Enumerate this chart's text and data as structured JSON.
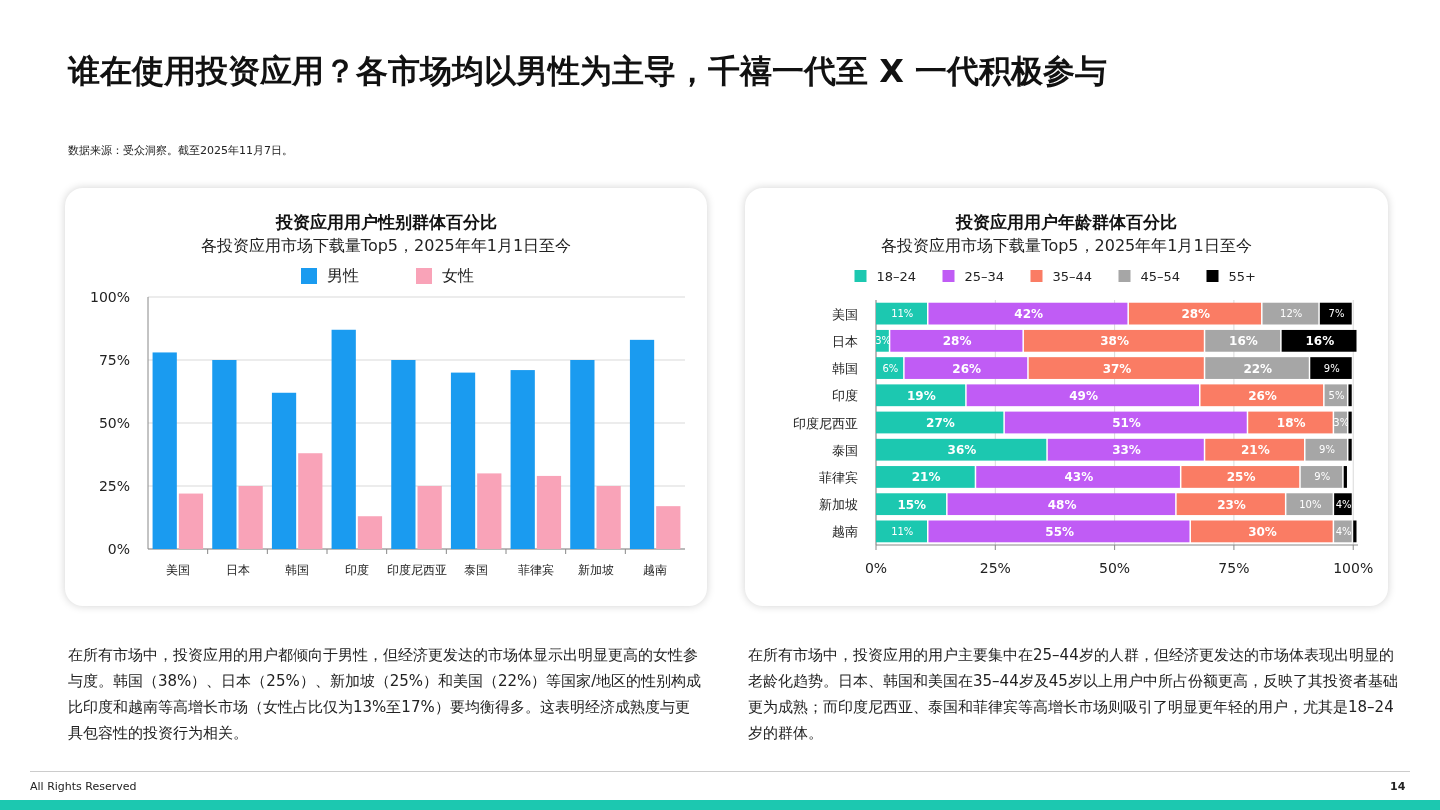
{
  "chart_data": [
    {
      "type": "bar",
      "title": "投资应用用户性别群体百分比",
      "subtitle": "各投资应用市场下载量Top5，2025年年1月1日至今",
      "categories": [
        "美国",
        "日本",
        "韩国",
        "印度",
        "印度尼西亚",
        "泰国",
        "菲律宾",
        "新加坡",
        "越南"
      ],
      "series": [
        {
          "name": "男性",
          "color": "#1a9bf0",
          "values": [
            78,
            75,
            62,
            87,
            75,
            70,
            71,
            75,
            83
          ]
        },
        {
          "name": "女性",
          "color": "#f9a3b8",
          "values": [
            22,
            25,
            38,
            13,
            25,
            30,
            29,
            25,
            17
          ]
        }
      ],
      "ylim": [
        0,
        100
      ],
      "yticks": [
        {
          "value": 0,
          "label": "0%"
        },
        {
          "value": 25,
          "label": "25%"
        },
        {
          "value": 50,
          "label": "50%"
        },
        {
          "value": 75,
          "label": "75%"
        },
        {
          "value": 100,
          "label": "100%"
        }
      ],
      "grid": "y",
      "legend": "top",
      "annotations": [
        "谁在使用投资应用？各市场均以男性为主导，千禧一代至 X 一代积极参与",
        "数据来源：受众洞察。截至2025年11月7日。",
        "在所有市场中，投资应用的用户都倾向于男性，但经济更发达的市场体显示出明显更高的女性参与度。韩国（38%）、日本（25%）、新加坡（25%）和美国（22%）等国家/地区的性别构成比印度和越南等高增长市场（女性占比仅为13%至17%）要均衡得多。这表明经济成熟度与更具包容性的投资行为相关。"
      ]
    },
    {
      "type": "bar",
      "orientation": "horizontal",
      "stacked": true,
      "title": "投资应用用户年龄群体百分比",
      "subtitle": "各投资应用市场下载量Top5，2025年年1月1日至今",
      "categories": [
        "美国",
        "日本",
        "韩国",
        "印度",
        "印度尼西亚",
        "泰国",
        "菲律宾",
        "新加坡",
        "越南"
      ],
      "series": [
        {
          "name": "18–24",
          "color": "#1cc8b0",
          "values": [
            11,
            3,
            6,
            19,
            27,
            36,
            21,
            15,
            11
          ],
          "value_labels": [
            "11%",
            "3%",
            "6%",
            "19%",
            "27%",
            "36%",
            "21%",
            "15%",
            "11%"
          ]
        },
        {
          "name": "25–34",
          "color": "#c05cf5",
          "values": [
            42,
            28,
            26,
            49,
            51,
            33,
            43,
            48,
            55
          ],
          "value_labels": [
            "42%",
            "28%",
            "26%",
            "49%",
            "51%",
            "33%",
            "43%",
            "48%",
            "55%"
          ]
        },
        {
          "name": "35–44",
          "color": "#fa7c64",
          "values": [
            28,
            38,
            37,
            26,
            18,
            21,
            25,
            23,
            30
          ],
          "value_labels": [
            "28%",
            "38%",
            "37%",
            "26%",
            "18%",
            "21%",
            "25%",
            "23%",
            "30%"
          ]
        },
        {
          "name": "45–54",
          "color": "#a6a6a6",
          "values": [
            12,
            16,
            22,
            5,
            3,
            9,
            9,
            10,
            4
          ],
          "value_labels": [
            "12%",
            "16%",
            "22%",
            "5%",
            "3%",
            "9%",
            "9%",
            "10%",
            "4%"
          ]
        },
        {
          "name": "55+",
          "color": "#000000",
          "values": [
            7,
            16,
            9,
            1,
            1,
            1,
            1,
            4,
            1
          ],
          "value_labels": [
            "7%",
            "16%",
            "9%",
            null,
            null,
            null,
            null,
            "4%",
            null
          ]
        }
      ],
      "xlim": [
        0,
        101
      ],
      "xticks": [
        {
          "value": 0,
          "label": "0%"
        },
        {
          "value": 25,
          "label": "25%"
        },
        {
          "value": 50,
          "label": "50%"
        },
        {
          "value": 75,
          "label": "75%"
        },
        {
          "value": 100,
          "label": "100%"
        }
      ],
      "grid": "x",
      "legend": "top",
      "annotations": [
        "在所有市场中，投资应用的用户主要集中在25–44岁的人群，但经济更发达的市场体表现出明显的老龄化趋势。日本、韩国和美国在35–44岁及45岁以上用户中所占份额更高，反映了其投资者基础更为成熟；而印度尼西亚、泰国和菲律宾等高增长市场则吸引了明显更年轻的用户，尤其是18–24岁的群体。",
        "All Rights Reserved",
        "14"
      ]
    }
  ]
}
